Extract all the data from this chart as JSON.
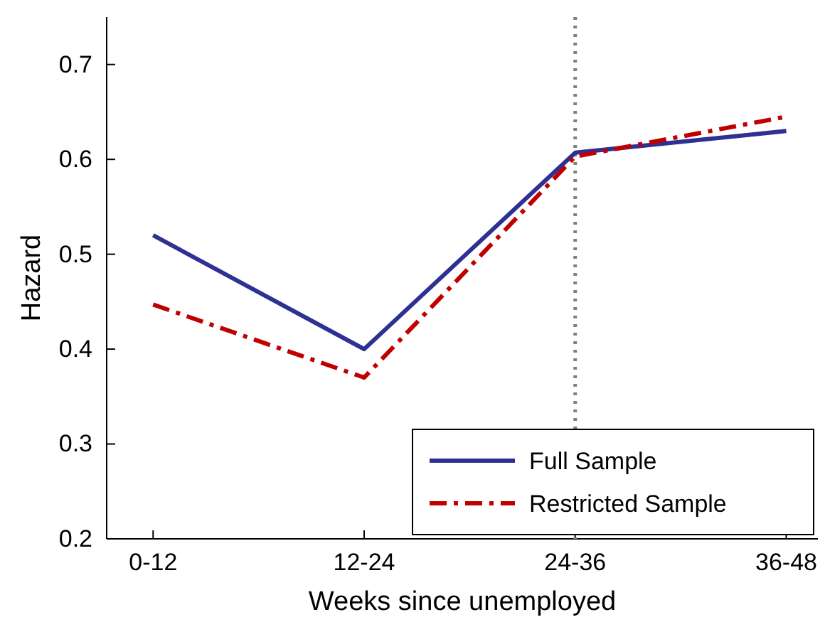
{
  "chart_data": {
    "type": "line",
    "xlabel": "Weeks since unemployed",
    "ylabel": "Hazard",
    "categories": [
      "0-12",
      "12-24",
      "24-36",
      "36-48"
    ],
    "series": [
      {
        "name": "Full Sample",
        "color": "#2e3192",
        "values": [
          0.52,
          0.4,
          0.607,
          0.63
        ],
        "line_style": "solid"
      },
      {
        "name": "Restricted Sample",
        "color": "#c00000",
        "values": [
          0.447,
          0.37,
          0.603,
          0.645
        ],
        "line_style": "dashdot"
      }
    ],
    "ylim": [
      0.2,
      0.75
    ],
    "yticks": [
      0.2,
      0.3,
      0.4,
      0.5,
      0.6,
      0.7
    ],
    "ref_lines": [
      {
        "axis": "x",
        "value": "24-36",
        "color": "#808080",
        "line_style": "dotted"
      }
    ],
    "legend": "bottom right",
    "grid": false,
    "marker": "none"
  }
}
